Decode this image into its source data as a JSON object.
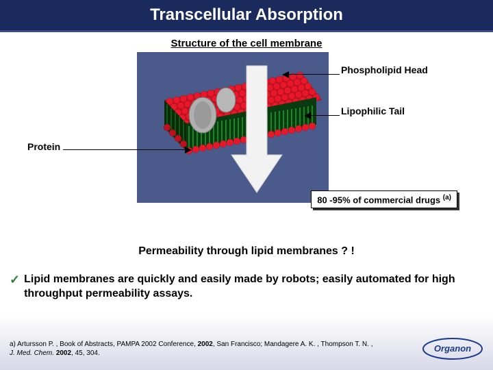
{
  "title": "Transcellular Absorption",
  "subtitle": "Structure of the cell membrane",
  "labels": {
    "phospholipid_head": "Phospholipid Head",
    "lipophilic_tail": "Lipophilic Tail",
    "protein": "Protein"
  },
  "callout": {
    "text": "80 -95% of commercial drugs",
    "sup": "(a)"
  },
  "question": "Permeability through lipid membranes ? !",
  "bullet": "Lipid membranes are quickly and easily made by robots; easily automated for high throughput permeability assays.",
  "checkmark": "✓",
  "footnote_html": "a) Artursson P. , Book of Abstracts, PAMPA 2002 Conference, <b>2002</b>, San Francisco; Mandagere A. K. , Thompson T. N. , <i>J. Med. Chem.</i> <b>2002</b>, 45, 304.",
  "logo_text": "Organon",
  "colors": {
    "title_bg": "#1a2a5c",
    "membrane_bg": "#4a5a8a",
    "head_color": "#e8182a",
    "tail_color": "#1fa030",
    "protein_color": "#9a9a9a",
    "arrow_color": "#f2f2f2",
    "check_color": "#2e7d32",
    "logo_color": "#1a3a8c"
  }
}
